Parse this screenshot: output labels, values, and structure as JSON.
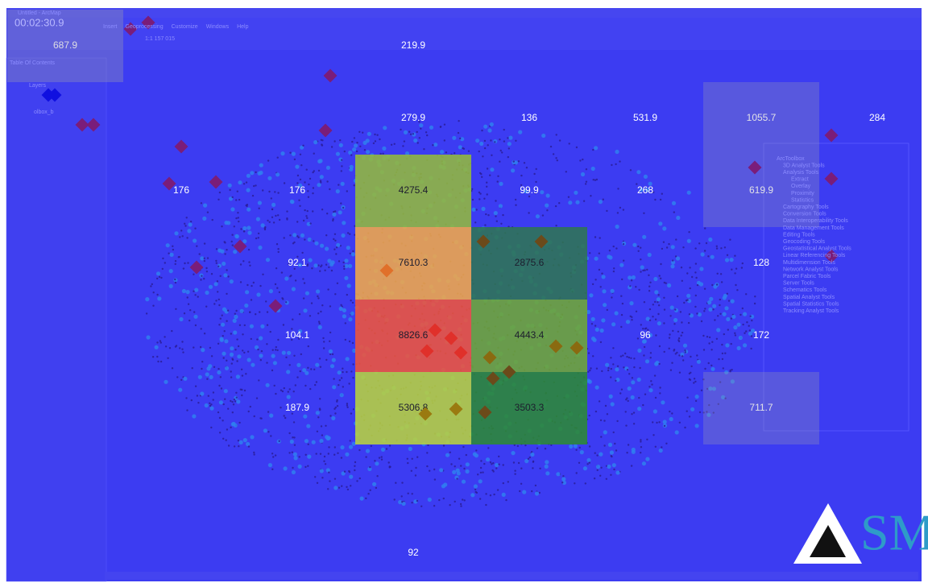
{
  "window": {
    "title": "Untitled - ArcMap",
    "timestamp": "00:02:30.9",
    "menu": [
      "Insert",
      "Geoprocessing",
      "Customize",
      "Windows",
      "Help"
    ],
    "scale": "1:1 157 015"
  },
  "toc": {
    "title": "Table Of Contents",
    "items": [
      "Layers",
      "olbox_b"
    ]
  },
  "toolbox": {
    "title": "ArcToolbox",
    "items": [
      "ArcToolbox",
      "3D Analyst Tools",
      "Analysis Tools",
      "Extract",
      "Overlay",
      "Proximity",
      "Statistics",
      "Cartography Tools",
      "Conversion Tools",
      "Data Interoperability Tools",
      "Data Management Tools",
      "Editing Tools",
      "Geocoding Tools",
      "Geostatistical Analyst Tools",
      "Linear Referencing Tools",
      "Multidimension Tools",
      "Network Analyst Tools",
      "Parcel Fabric Tools",
      "Server Tools",
      "Schematics Tools",
      "Spatial Analyst Tools",
      "Spatial Statistics Tools",
      "Tracking Analyst Tools"
    ]
  },
  "grid": {
    "rows": [
      [
        687.9,
        null,
        null,
        219.9,
        null,
        null,
        null,
        null
      ],
      [
        null,
        null,
        null,
        279.9,
        136,
        531.9,
        1055.7,
        284
      ],
      [
        null,
        176,
        176,
        4275.4,
        99.9,
        268,
        619.9,
        null
      ],
      [
        null,
        null,
        92.1,
        7610.3,
        2875.6,
        null,
        128,
        null
      ],
      [
        null,
        null,
        104.1,
        8826.6,
        4443.4,
        96,
        172,
        null
      ],
      [
        null,
        null,
        187.9,
        5306.8,
        3503.3,
        null,
        711.7,
        null
      ],
      [
        null,
        null,
        null,
        null,
        null,
        null,
        null,
        null
      ],
      [
        null,
        null,
        null,
        92,
        null,
        null,
        null,
        null
      ]
    ]
  },
  "logo": {
    "text": "SM"
  }
}
